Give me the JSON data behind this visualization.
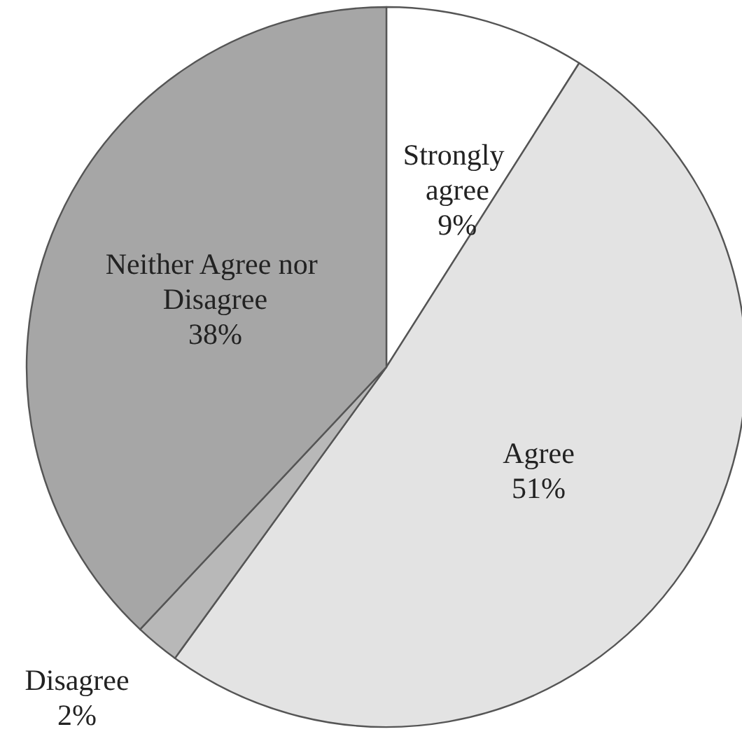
{
  "chart_data": {
    "type": "pie",
    "categories": [
      "Strongly agree",
      "Agree",
      "Disagree",
      "Neither Agree nor Disagree"
    ],
    "values": [
      9,
      51,
      2,
      38
    ],
    "colors": [
      "#ffffff",
      "#e3e3e3",
      "#b8b8b8",
      "#a6a6a6"
    ],
    "legend": false,
    "value_labels": [
      "9%",
      "51%",
      "2%",
      "38%"
    ]
  }
}
